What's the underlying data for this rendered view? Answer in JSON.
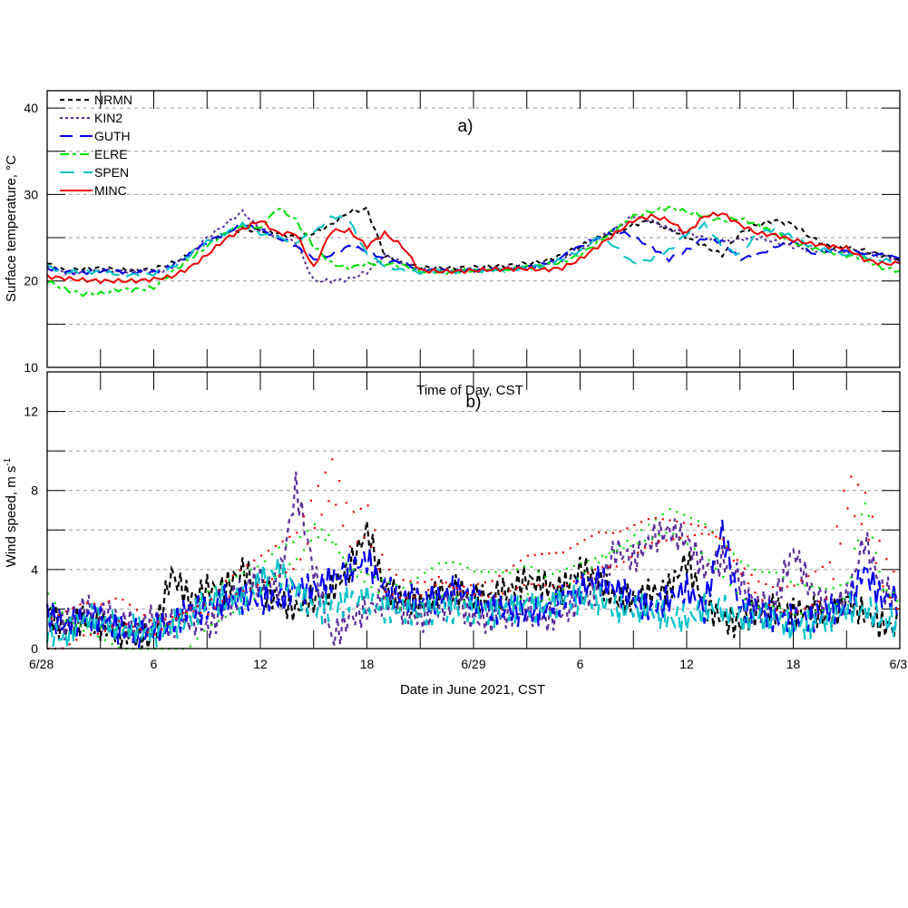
{
  "chart_data": [
    {
      "type": "line",
      "panel_label": "a)",
      "ylabel": "Surface temperature, °C",
      "xlabel": "Time of Day, CST",
      "ylim": [
        10,
        42
      ],
      "yticks": [
        "10",
        "20",
        "30",
        "40"
      ],
      "grid": "dashed horizontal every 5",
      "legend_position": "top-left",
      "x_hours": [
        0,
        1,
        2,
        3,
        4,
        5,
        6,
        7,
        8,
        9,
        10,
        11,
        12,
        13,
        14,
        15,
        16,
        17,
        18,
        19,
        20,
        21,
        22,
        23,
        24,
        25,
        26,
        27,
        28,
        29,
        30,
        31,
        32,
        33,
        34,
        35,
        36,
        37,
        38,
        39,
        40,
        41,
        42,
        43,
        44,
        45,
        46,
        47,
        48
      ],
      "series": [
        {
          "name": "NRMN",
          "color": "#000000",
          "dash": "5,4",
          "values": [
            22,
            21.2,
            21.4,
            21.5,
            21.3,
            21.2,
            21.4,
            22,
            23,
            24.5,
            25.5,
            26,
            25.8,
            25.5,
            25,
            25.5,
            26.5,
            28,
            28.3,
            23,
            22,
            21.6,
            21.5,
            21.5,
            21.6,
            21.7,
            21.8,
            22,
            22.3,
            23,
            24,
            25,
            25.5,
            26.5,
            27,
            26,
            25,
            24,
            23,
            25.5,
            26.5,
            27,
            26.5,
            25,
            24,
            23.8,
            23.5,
            23,
            22.5
          ]
        },
        {
          "name": "KIN2",
          "color": "#5b2d9c",
          "dash": "3,3",
          "values": [
            21.5,
            21,
            21,
            21.2,
            21.2,
            21.1,
            21,
            21.5,
            23,
            25,
            26.5,
            28,
            26,
            25,
            24.5,
            20,
            20,
            20.2,
            21,
            23,
            22,
            21.3,
            21.2,
            21.2,
            21.3,
            21.4,
            21.5,
            21.5,
            22,
            22.5,
            23.5,
            25,
            26,
            27.5,
            27,
            26,
            25.5,
            25,
            24.5,
            24.8,
            25,
            24.5,
            24,
            23.5,
            23.5,
            23.3,
            23.2,
            23,
            22.2
          ]
        },
        {
          "name": "GUTH",
          "color": "#0000ee",
          "dash": "14,8",
          "values": [
            21.5,
            21,
            21,
            21.1,
            21.1,
            21,
            21,
            21.8,
            23,
            24.5,
            25.5,
            26.5,
            26,
            25,
            24,
            22.5,
            23,
            24,
            23.5,
            22.5,
            22,
            21.3,
            21.2,
            21.2,
            21.2,
            21.3,
            21.4,
            21.6,
            22,
            22.8,
            24,
            25,
            26,
            25,
            24,
            22.5,
            23.5,
            25,
            24.5,
            22.5,
            23,
            24,
            24.5,
            23.2,
            23.5,
            23.4,
            23.2,
            23,
            22.6
          ]
        },
        {
          "name": "ELRE",
          "color": "#00e000",
          "dash": "10,4,4,4",
          "values": [
            20,
            19,
            18.5,
            18.5,
            19,
            19,
            19.2,
            21,
            22.5,
            24,
            25.5,
            26.5,
            26,
            28.5,
            27,
            24,
            22,
            21.5,
            22,
            22,
            21.8,
            21.1,
            21,
            21.1,
            21.2,
            21.2,
            21.4,
            21.6,
            21.8,
            22.2,
            23,
            24.5,
            26,
            27.5,
            28,
            28.5,
            28,
            27.5,
            27,
            27.2,
            26.5,
            25.5,
            24.5,
            23.8,
            23.3,
            23,
            22.5,
            21.5,
            21.2
          ]
        },
        {
          "name": "SPEN",
          "color": "#00c0c8",
          "dash": "16,10",
          "values": [
            21.7,
            21,
            21.1,
            21,
            20.8,
            20.7,
            20.8,
            21.5,
            23,
            24.5,
            25.5,
            26.5,
            25.5,
            25,
            24.5,
            25.5,
            27.5,
            27,
            23,
            21.8,
            21.2,
            21,
            21.1,
            21.1,
            21.1,
            21.2,
            21.3,
            21.5,
            21.8,
            22.5,
            23.5,
            25,
            24,
            22,
            22.5,
            23.5,
            25.5,
            26.5,
            24,
            23,
            25.5,
            26,
            25,
            24,
            23.5,
            23,
            22.8,
            22.4,
            22.2
          ]
        },
        {
          "name": "MINC",
          "color": "#ee0000",
          "dash": "",
          "values": [
            20.5,
            20.3,
            20.1,
            20,
            20,
            20,
            20.2,
            20.5,
            21.5,
            23,
            24.8,
            26,
            27,
            25.5,
            25.5,
            21.5,
            25.8,
            25.8,
            24,
            25.5,
            24,
            21.2,
            21.1,
            21.1,
            21.2,
            21.3,
            21.4,
            21.4,
            21.3,
            21.5,
            22.5,
            24,
            25.5,
            27,
            27.5,
            27,
            25.5,
            27.5,
            27.8,
            26.5,
            25.5,
            25.3,
            24.7,
            24.3,
            24,
            23.8,
            22.5,
            22,
            22
          ]
        }
      ],
      "legend": [
        "NRMN",
        "KIN2",
        "GUTH",
        "ELRE",
        "SPEN",
        "MINC"
      ]
    },
    {
      "type": "line",
      "panel_label": "b)",
      "ylabel": "Wind speed, m s",
      "ylabel_superscript": "-1",
      "xlabel": "Date in June 2021, CST",
      "ylim": [
        0,
        14
      ],
      "yticks": [
        "0",
        "4",
        "8",
        "12"
      ],
      "xticks": [
        "6/28",
        "6",
        "12",
        "18",
        "6/29",
        "6",
        "12",
        "18",
        "6/3"
      ],
      "xlim_hours": [
        0,
        48
      ],
      "grid": "dashed horizontal every 2",
      "x_hours": [
        0,
        1,
        2,
        3,
        4,
        5,
        6,
        7,
        8,
        9,
        10,
        11,
        12,
        13,
        14,
        15,
        16,
        17,
        18,
        19,
        20,
        21,
        22,
        23,
        24,
        25,
        26,
        27,
        28,
        29,
        30,
        31,
        32,
        33,
        34,
        35,
        36,
        37,
        38,
        39,
        40,
        41,
        42,
        43,
        44,
        45,
        46,
        47,
        48
      ],
      "series": [
        {
          "name": "NRMN",
          "color": "#000000",
          "style": "dashed",
          "values": [
            1.8,
            1,
            1.5,
            1.2,
            0.8,
            0.6,
            0.5,
            3.8,
            2.5,
            3,
            3,
            4,
            3,
            2.5,
            2,
            2.5,
            3,
            4,
            6,
            3,
            2.5,
            2.2,
            2.8,
            3,
            2.5,
            2.6,
            3,
            3.5,
            3.2,
            3,
            4,
            3.5,
            2.5,
            2.5,
            2.8,
            3,
            4.5,
            2.2,
            1.5,
            1.2,
            2,
            2,
            1.8,
            2,
            1.5,
            2.5,
            1.8,
            1.2,
            1
          ]
        },
        {
          "name": "KIN2",
          "color": "#5b2d9c",
          "style": "dotted-dash",
          "values": [
            1.5,
            1.2,
            2,
            1.8,
            1.5,
            1,
            1.5,
            1.2,
            1.6,
            1,
            2,
            3,
            3.5,
            3,
            8.2,
            4,
            0.5,
            1.5,
            2,
            2.5,
            2,
            1.5,
            2,
            2.5,
            1.5,
            1.5,
            1.8,
            2,
            1.5,
            1.8,
            2.5,
            3,
            5,
            4.5,
            5.5,
            6,
            5.5,
            4,
            4.5,
            3.5,
            2,
            2.5,
            5,
            3,
            2,
            2.5,
            5.5,
            3,
            2.5
          ]
        },
        {
          "name": "GUTH",
          "color": "#0000ee",
          "style": "long-dash",
          "values": [
            1.8,
            1.2,
            1.5,
            1.5,
            1,
            0.8,
            1,
            1.2,
            2,
            2,
            2.5,
            2.5,
            2.5,
            2.5,
            3,
            3,
            3.5,
            4,
            4.5,
            3,
            2.5,
            2.5,
            2.5,
            3,
            2.5,
            2,
            2,
            1.8,
            2,
            2.5,
            3,
            3.5,
            3,
            2.5,
            2,
            2.5,
            3,
            2,
            6,
            2,
            2,
            1.5,
            1.5,
            1.5,
            2,
            2,
            4,
            2.5,
            2.5
          ]
        },
        {
          "name": "ELRE",
          "color": "#00e000",
          "style": "dots",
          "values": [
            2.5,
            1.5,
            1,
            0.8,
            0.5,
            0.3,
            0.2,
            0.5,
            1,
            2,
            2.5,
            3,
            3.5,
            4.5,
            5,
            6,
            5.5,
            4,
            3.5,
            3,
            2.5,
            3,
            3.5,
            3.5,
            3,
            3,
            3,
            3.5,
            3,
            3.5,
            4,
            4.5,
            5,
            5.5,
            6,
            6.5,
            6,
            5.5,
            4.5,
            3.5,
            3,
            3,
            2.5,
            2.5,
            2.5,
            3,
            7.5,
            3,
            2.5
          ]
        },
        {
          "name": "SPEN",
          "color": "#00c0c8",
          "style": "dash",
          "values": [
            1,
            0.5,
            1.5,
            1.5,
            1,
            1,
            0.8,
            1.2,
            1.5,
            2.5,
            2.5,
            2.5,
            3.5,
            4,
            3,
            2,
            2,
            2.5,
            2.5,
            2,
            2,
            1.8,
            2,
            2,
            2,
            1.8,
            2,
            2.2,
            2,
            2.5,
            2.5,
            2.5,
            2,
            2,
            2,
            1.5,
            1.5,
            2,
            2,
            1.5,
            1.5,
            1.5,
            1,
            1.2,
            1.5,
            2,
            2,
            1.5,
            1.2
          ]
        },
        {
          "name": "MINC",
          "color": "#ee0000",
          "style": "dots",
          "values": [
            0.5,
            1,
            1.5,
            1.5,
            2,
            1.5,
            1,
            1.5,
            2,
            2,
            3,
            3.5,
            4,
            4.5,
            5,
            7,
            8.7,
            6,
            6.5,
            3.5,
            3,
            3,
            3.5,
            3,
            3,
            3,
            3.5,
            4,
            4,
            4,
            4.5,
            5,
            5,
            5.5,
            6,
            6,
            6,
            6,
            5.5,
            4,
            3,
            2.5,
            2.5,
            3,
            3.5,
            8,
            7,
            4,
            2.5
          ]
        }
      ]
    }
  ]
}
